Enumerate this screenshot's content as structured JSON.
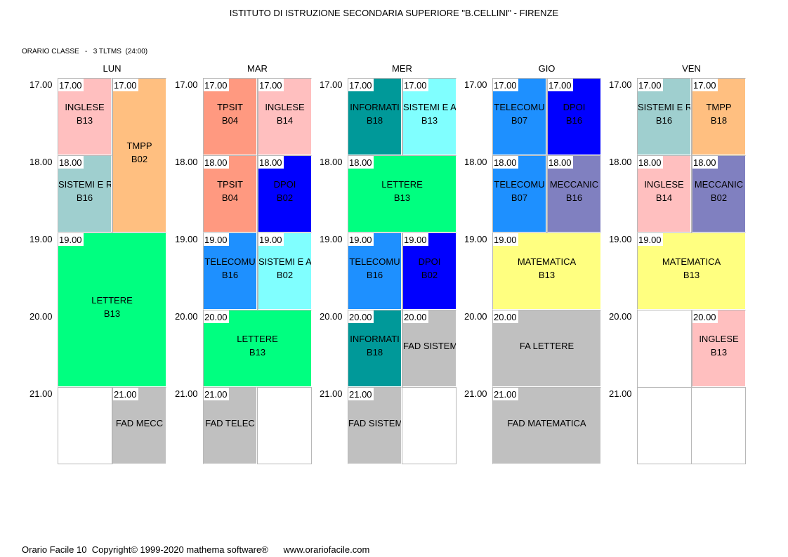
{
  "header": {
    "title": "ISTITUTO DI ISTRUZIONE SECONDARIA SUPERIORE \"B.CELLINI\" - FIRENZE",
    "subtitle": "ORARIO CLASSE   -   3 TLTMS  (24:00)"
  },
  "footer": {
    "text": "Orario Facile 10  Copyright© 1999-2020 mathema software®      www.orariofacile.com"
  },
  "hours": [
    "17.00",
    "18.00",
    "19.00",
    "20.00",
    "21.00"
  ],
  "days": [
    {
      "name": "LUN",
      "slots": [
        {
          "time": "17.00",
          "col": 0,
          "start": 0,
          "span": 1,
          "subject": "INGLESE",
          "room": "B13",
          "color": "#ffbfbf"
        },
        {
          "time": "17.00",
          "col": 1,
          "start": 0,
          "span": 2,
          "subject": "TMPP",
          "room": "B02",
          "color": "#ffbf80"
        },
        {
          "time": "18.00",
          "col": 0,
          "start": 1,
          "span": 1,
          "subject": "SISTEMI E R",
          "room": "B16",
          "color": "#9fcfcf"
        },
        {
          "time": "19.00",
          "col": -1,
          "start": 2,
          "span": 2,
          "subject": "LETTERE",
          "room": "B13",
          "color": "#00ff80"
        },
        {
          "time": "21.00",
          "col": 1,
          "start": 4,
          "span": 1,
          "subject": "FAD MECC",
          "room": "",
          "color": "#c0c0c0"
        }
      ]
    },
    {
      "name": "MAR",
      "slots": [
        {
          "time": "17.00",
          "col": 0,
          "start": 0,
          "span": 1,
          "subject": "TPSIT",
          "room": "B04",
          "color": "#ff9980"
        },
        {
          "time": "17.00",
          "col": 1,
          "start": 0,
          "span": 1,
          "subject": "INGLESE",
          "room": "B14",
          "color": "#ffbfbf"
        },
        {
          "time": "18.00",
          "col": 0,
          "start": 1,
          "span": 1,
          "subject": "TPSIT",
          "room": "B04",
          "color": "#ff9980"
        },
        {
          "time": "18.00",
          "col": 1,
          "start": 1,
          "span": 1,
          "subject": "DPOI",
          "room": "B02",
          "color": "#0000ff"
        },
        {
          "time": "19.00",
          "col": 0,
          "start": 2,
          "span": 1,
          "subject": "TELECOMU",
          "room": "B16",
          "color": "#1e90ff"
        },
        {
          "time": "19.00",
          "col": 1,
          "start": 2,
          "span": 1,
          "subject": "SISTEMI E A",
          "room": "B02",
          "color": "#80ffff"
        },
        {
          "time": "20.00",
          "col": -1,
          "start": 3,
          "span": 1,
          "subject": "LETTERE",
          "room": "B13",
          "color": "#00ff80"
        },
        {
          "time": "21.00",
          "col": 0,
          "start": 4,
          "span": 1,
          "subject": "FAD TELEC",
          "room": "",
          "color": "#c0c0c0"
        }
      ]
    },
    {
      "name": "MER",
      "slots": [
        {
          "time": "17.00",
          "col": 0,
          "start": 0,
          "span": 1,
          "subject": "INFORMATI",
          "room": "B18",
          "color": "#009999"
        },
        {
          "time": "17.00",
          "col": 1,
          "start": 0,
          "span": 1,
          "subject": "SISTEMI E A",
          "room": "B13",
          "color": "#80ffff"
        },
        {
          "time": "18.00",
          "col": -1,
          "start": 1,
          "span": 1,
          "subject": "LETTERE",
          "room": "B13",
          "color": "#00ff80"
        },
        {
          "time": "19.00",
          "col": 0,
          "start": 2,
          "span": 1,
          "subject": "TELECOMU",
          "room": "B16",
          "color": "#1e90ff"
        },
        {
          "time": "19.00",
          "col": 1,
          "start": 2,
          "span": 1,
          "subject": "DPOI",
          "room": "B02",
          "color": "#0000ff"
        },
        {
          "time": "20.00",
          "col": 0,
          "start": 3,
          "span": 1,
          "subject": "INFORMATI",
          "room": "B18",
          "color": "#009999"
        },
        {
          "time": "20.00",
          "col": 1,
          "start": 3,
          "span": 1,
          "subject": "FAD SISTEM",
          "room": "",
          "color": "#c0c0c0"
        },
        {
          "time": "21.00",
          "col": 0,
          "start": 4,
          "span": 1,
          "subject": "FAD SISTEM",
          "room": "",
          "color": "#c0c0c0"
        }
      ]
    },
    {
      "name": "GIO",
      "slots": [
        {
          "time": "17.00",
          "col": 0,
          "start": 0,
          "span": 1,
          "subject": "TELECOMU",
          "room": "B07",
          "color": "#1e90ff"
        },
        {
          "time": "17.00",
          "col": 1,
          "start": 0,
          "span": 1,
          "subject": "DPOI",
          "room": "B16",
          "color": "#0000ff"
        },
        {
          "time": "18.00",
          "col": 0,
          "start": 1,
          "span": 1,
          "subject": "TELECOMU",
          "room": "B07",
          "color": "#1e90ff"
        },
        {
          "time": "18.00",
          "col": 1,
          "start": 1,
          "span": 1,
          "subject": "MECCANIC",
          "room": "B16",
          "color": "#8080c0"
        },
        {
          "time": "19.00",
          "col": -1,
          "start": 2,
          "span": 1,
          "subject": "MATEMATICA",
          "room": "B13",
          "color": "#ffff80"
        },
        {
          "time": "20.00",
          "col": -1,
          "start": 3,
          "span": 1,
          "subject": "FA LETTERE",
          "room": "",
          "color": "#c0c0c0"
        },
        {
          "time": "21.00",
          "col": -1,
          "start": 4,
          "span": 1,
          "subject": "FAD MATEMATICA",
          "room": "",
          "color": "#c0c0c0"
        }
      ]
    },
    {
      "name": "VEN",
      "slots": [
        {
          "time": "17.00",
          "col": 0,
          "start": 0,
          "span": 1,
          "subject": "SISTEMI E R",
          "room": "B16",
          "color": "#9fcfcf"
        },
        {
          "time": "17.00",
          "col": 1,
          "start": 0,
          "span": 1,
          "subject": "TMPP",
          "room": "B18",
          "color": "#ffbf80"
        },
        {
          "time": "18.00",
          "col": 0,
          "start": 1,
          "span": 1,
          "subject": "INGLESE",
          "room": "B14",
          "color": "#ffbfbf"
        },
        {
          "time": "18.00",
          "col": 1,
          "start": 1,
          "span": 1,
          "subject": "MECCANIC",
          "room": "B02",
          "color": "#8080c0"
        },
        {
          "time": "19.00",
          "col": -1,
          "start": 2,
          "span": 1,
          "subject": "MATEMATICA",
          "room": "B13",
          "color": "#ffff80"
        },
        {
          "time": "20.00",
          "col": 1,
          "start": 3,
          "span": 1,
          "subject": "INGLESE",
          "room": "B13",
          "color": "#ffbfbf"
        }
      ]
    }
  ]
}
